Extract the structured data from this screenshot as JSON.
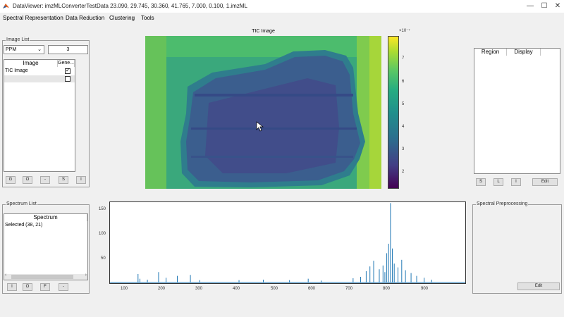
{
  "window": {
    "title": "DataViewer: imzMLConverterTestData  23.090, 29.745, 30.360, 41.765, 7.000, 0.100, 1.imzML",
    "minimize": "—",
    "restore": "☐",
    "close": "✕"
  },
  "menu": [
    "Spectral Representation",
    "Data Reduction",
    "Clustering",
    "Tools"
  ],
  "image_list": {
    "legend": "Image List",
    "mode_select": "PPM",
    "ppm_value": "3",
    "columns": [
      "Image",
      "Gene..."
    ],
    "rows": [
      {
        "label": "TIC Image",
        "checked": true
      },
      {
        "label": "",
        "checked": false
      }
    ],
    "buttons": [
      "G",
      "O",
      "-",
      "S",
      "I"
    ]
  },
  "image_view": {
    "title": "TIC Image",
    "colorbar_exponent": "×10⁻⁷",
    "colorbar_ticks": [
      "7",
      "6",
      "5",
      "4",
      "3",
      "2"
    ],
    "colors": {
      "low": "#440154",
      "mid": "#21908c",
      "high": "#fde725"
    }
  },
  "region_panel": {
    "columns": [
      "Region",
      "Display"
    ],
    "buttons": [
      "S",
      "L",
      "I",
      "Edit"
    ]
  },
  "spectrum_list": {
    "legend": "Spectrum List",
    "column": "Spectrum",
    "rows": [
      "Selected (38, 21)"
    ],
    "buttons": [
      "I",
      "O",
      "F",
      "-"
    ]
  },
  "spectral_preprocessing": {
    "legend": "Spectral Preprocessing",
    "edit_button": "Edit"
  },
  "chart_data": {
    "type": "line",
    "xlim": [
      50,
      1000
    ],
    "ylim": [
      0,
      170
    ],
    "x_ticks": [
      "100",
      "200",
      "300",
      "400",
      "500",
      "600",
      "700",
      "800",
      "900"
    ],
    "y_ticks": [
      "150",
      "100",
      "50"
    ],
    "color": "#1f77b4",
    "peaks": [
      [
        125,
        18
      ],
      [
        130,
        8
      ],
      [
        150,
        6
      ],
      [
        180,
        22
      ],
      [
        200,
        10
      ],
      [
        230,
        14
      ],
      [
        265,
        16
      ],
      [
        290,
        5
      ],
      [
        395,
        5
      ],
      [
        460,
        6
      ],
      [
        530,
        5
      ],
      [
        580,
        8
      ],
      [
        615,
        4
      ],
      [
        700,
        9
      ],
      [
        720,
        12
      ],
      [
        735,
        24
      ],
      [
        745,
        34
      ],
      [
        755,
        46
      ],
      [
        770,
        28
      ],
      [
        780,
        36
      ],
      [
        785,
        22
      ],
      [
        790,
        62
      ],
      [
        795,
        82
      ],
      [
        800,
        168
      ],
      [
        805,
        72
      ],
      [
        810,
        40
      ],
      [
        820,
        32
      ],
      [
        830,
        48
      ],
      [
        840,
        26
      ],
      [
        855,
        20
      ],
      [
        870,
        14
      ],
      [
        890,
        10
      ],
      [
        910,
        6
      ]
    ]
  }
}
